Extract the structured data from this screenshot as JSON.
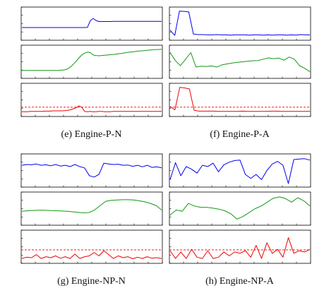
{
  "colors": {
    "top": "#0000ee",
    "mid": "#119911",
    "bottom": "#ee0000",
    "frame": "#000000",
    "tick": "#000000"
  },
  "chart_data": [
    {
      "type": "line",
      "caption": "(e) Engine-P-N",
      "panels": [
        {
          "name": "top",
          "ylim": [
            0,
            1
          ],
          "y": [
            0.35,
            0.35,
            0.35,
            0.35,
            0.35,
            0.35,
            0.35,
            0.35,
            0.35,
            0.35,
            0.35,
            0.35,
            0.35,
            0.35,
            0.35,
            0.35,
            0.35,
            0.35,
            0.35,
            0.35,
            0.35,
            0.35,
            0.35,
            0.36,
            0.62,
            0.7,
            0.62,
            0.58,
            0.58,
            0.58,
            0.58,
            0.58,
            0.59,
            0.59,
            0.59,
            0.59,
            0.59,
            0.59,
            0.59,
            0.59,
            0.59,
            0.59,
            0.59,
            0.59,
            0.59,
            0.59,
            0.59,
            0.59,
            0.59,
            0.59
          ]
        },
        {
          "name": "mid",
          "ylim": [
            0,
            1
          ],
          "y": [
            0.17,
            0.17,
            0.17,
            0.17,
            0.17,
            0.17,
            0.17,
            0.17,
            0.17,
            0.17,
            0.17,
            0.17,
            0.17,
            0.17,
            0.18,
            0.19,
            0.23,
            0.3,
            0.4,
            0.52,
            0.65,
            0.76,
            0.83,
            0.87,
            0.85,
            0.76,
            0.74,
            0.73,
            0.74,
            0.75,
            0.76,
            0.77,
            0.78,
            0.79,
            0.81,
            0.82,
            0.84,
            0.86,
            0.87,
            0.88,
            0.9,
            0.91,
            0.92,
            0.93,
            0.94,
            0.95,
            0.96,
            0.97,
            0.97,
            0.98
          ]
        },
        {
          "name": "bottom",
          "ylim": [
            0,
            1
          ],
          "threshold": 0.22,
          "y": [
            0.05,
            0.05,
            0.05,
            0.06,
            0.06,
            0.06,
            0.06,
            0.06,
            0.07,
            0.07,
            0.07,
            0.08,
            0.08,
            0.08,
            0.08,
            0.09,
            0.1,
            0.12,
            0.16,
            0.2,
            0.27,
            0.22,
            0.06,
            0.05,
            0.06,
            0.05,
            0.05,
            0.06,
            0.06,
            0.05,
            0.05,
            0.05,
            0.06,
            0.06,
            0.06,
            0.06,
            0.06,
            0.06,
            0.06,
            0.06,
            0.06,
            0.06,
            0.06,
            0.06,
            0.06,
            0.06,
            0.06,
            0.06,
            0.06,
            0.06
          ]
        }
      ]
    },
    {
      "type": "line",
      "caption": "(f) Engine-P-A",
      "panels": [
        {
          "name": "top",
          "ylim": [
            0,
            1
          ],
          "y": [
            0.25,
            0.05,
            0.98,
            0.97,
            0.95,
            0.1,
            0.08,
            0.08,
            0.07,
            0.07,
            0.08,
            0.07,
            0.07,
            0.06,
            0.07,
            0.07,
            0.07,
            0.06,
            0.07,
            0.07,
            0.06,
            0.07,
            0.06,
            0.07,
            0.07,
            0.06,
            0.07,
            0.06,
            0.08,
            0.07,
            0.07
          ]
        },
        {
          "name": "mid",
          "ylim": [
            0,
            1
          ],
          "y": [
            0.85,
            0.55,
            0.35,
            0.6,
            0.85,
            0.3,
            0.33,
            0.32,
            0.34,
            0.3,
            0.38,
            0.42,
            0.45,
            0.48,
            0.5,
            0.52,
            0.54,
            0.55,
            0.6,
            0.65,
            0.62,
            0.64,
            0.56,
            0.68,
            0.6,
            0.35,
            0.25,
            0.12
          ]
        },
        {
          "name": "bottom",
          "ylim": [
            0,
            1
          ],
          "threshold": 0.22,
          "y": [
            0.25,
            0.12,
            0.98,
            0.96,
            0.92,
            0.1,
            0.07,
            0.07,
            0.07,
            0.07,
            0.06,
            0.06,
            0.06,
            0.06,
            0.06,
            0.07,
            0.06,
            0.06,
            0.06,
            0.06,
            0.06,
            0.07,
            0.07,
            0.06,
            0.06,
            0.06,
            0.06,
            0.06,
            0.06,
            0.06
          ]
        }
      ]
    },
    {
      "type": "line",
      "caption": "(g) Engine-NP-N",
      "panels": [
        {
          "name": "top",
          "ylim": [
            0,
            1
          ],
          "y": [
            0.7,
            0.73,
            0.72,
            0.75,
            0.7,
            0.72,
            0.68,
            0.73,
            0.67,
            0.7,
            0.65,
            0.73,
            0.65,
            0.6,
            0.3,
            0.25,
            0.35,
            0.78,
            0.75,
            0.73,
            0.74,
            0.7,
            0.71,
            0.66,
            0.7,
            0.64,
            0.7,
            0.62,
            0.64,
            0.6
          ]
        },
        {
          "name": "mid",
          "ylim": [
            0,
            1
          ],
          "y": [
            0.4,
            0.42,
            0.43,
            0.44,
            0.44,
            0.43,
            0.42,
            0.41,
            0.4,
            0.38,
            0.36,
            0.34,
            0.35,
            0.45,
            0.62,
            0.78,
            0.82,
            0.83,
            0.84,
            0.84,
            0.83,
            0.8,
            0.76,
            0.7,
            0.62,
            0.45
          ]
        },
        {
          "name": "bottom",
          "ylim": [
            0,
            1
          ],
          "threshold": 0.38,
          "y": [
            0.05,
            0.1,
            0.08,
            0.2,
            0.05,
            0.12,
            0.08,
            0.15,
            0.06,
            0.12,
            0.05,
            0.22,
            0.05,
            0.12,
            0.15,
            0.28,
            0.15,
            0.35,
            0.2,
            0.05,
            0.15,
            0.08,
            0.12,
            0.04,
            0.1,
            0.05,
            0.12,
            0.06,
            0.08,
            0.05
          ]
        }
      ]
    },
    {
      "type": "line",
      "caption": "(h) Engine-NP-A",
      "panels": [
        {
          "name": "top",
          "ylim": [
            0,
            1
          ],
          "y": [
            0.15,
            0.8,
            0.3,
            0.65,
            0.55,
            0.4,
            0.7,
            0.65,
            0.78,
            0.45,
            0.72,
            0.82,
            0.88,
            0.9,
            0.35,
            0.2,
            0.35,
            0.15,
            0.5,
            0.75,
            0.85,
            0.7,
            0.0,
            0.92,
            0.94,
            0.95,
            0.9
          ]
        },
        {
          "name": "mid",
          "ylim": [
            0,
            1
          ],
          "y": [
            0.25,
            0.45,
            0.4,
            0.7,
            0.6,
            0.55,
            0.55,
            0.52,
            0.48,
            0.42,
            0.3,
            0.1,
            0.2,
            0.35,
            0.5,
            0.6,
            0.75,
            0.9,
            0.95,
            0.88,
            0.75,
            0.92,
            0.8,
            0.6
          ]
        },
        {
          "name": "bottom",
          "ylim": [
            0,
            1
          ],
          "threshold": 0.38,
          "y": [
            0.35,
            0.05,
            0.3,
            0.05,
            0.4,
            0.1,
            0.05,
            0.35,
            0.05,
            0.1,
            0.3,
            0.15,
            0.3,
            0.25,
            0.35,
            0.1,
            0.55,
            0.05,
            0.65,
            0.25,
            0.4,
            0.1,
            0.85,
            0.25,
            0.35,
            0.3,
            0.4
          ]
        }
      ]
    }
  ]
}
